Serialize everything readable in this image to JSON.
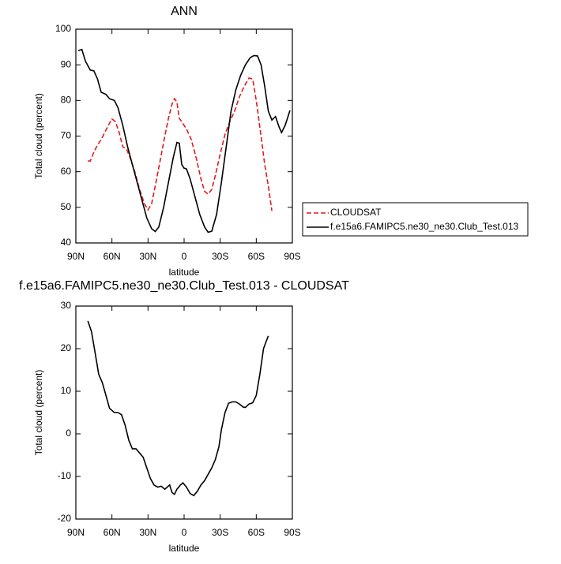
{
  "chart_data": [
    {
      "type": "line",
      "title": "ANN",
      "xlabel": "latitude",
      "ylabel": "Total cloud (percent)",
      "xlim": [
        90,
        -90
      ],
      "ylim": [
        40,
        100
      ],
      "xticks": [
        {
          "value": 90,
          "label": "90N"
        },
        {
          "value": 60,
          "label": "60N"
        },
        {
          "value": 30,
          "label": "30N"
        },
        0,
        {
          "value": -30,
          "label": "30S"
        },
        {
          "value": -60,
          "label": "60S"
        },
        {
          "value": -90,
          "label": "90S"
        }
      ],
      "yticks": [
        40,
        50,
        60,
        70,
        80,
        90,
        100
      ],
      "legend_position": "right",
      "series": [
        {
          "name": "CLOUDSAT",
          "color": "#e41a1c",
          "dash": true,
          "x": [
            80,
            78,
            75,
            72,
            69,
            66,
            63,
            60,
            57,
            54,
            51,
            48,
            45,
            41,
            37,
            33,
            30,
            27,
            24,
            20,
            16,
            13,
            10,
            8,
            6,
            4,
            1,
            -2,
            -6,
            -10,
            -14,
            -17,
            -20,
            -23,
            -26,
            -30,
            -34,
            -38,
            -42,
            -46,
            -50,
            -54,
            -57,
            -60,
            -64,
            -67,
            -70,
            -73
          ],
          "values": [
            63,
            63,
            65.5,
            67.5,
            69,
            71,
            73,
            74.8,
            74,
            71,
            67,
            66.5,
            64,
            60,
            55,
            51,
            49.3,
            51,
            56,
            63,
            70,
            75,
            79,
            80.5,
            79.5,
            75,
            73.5,
            72,
            69,
            64,
            58,
            54.5,
            53.7,
            55,
            59,
            65,
            70.5,
            74,
            77,
            81,
            84,
            86.3,
            86,
            80,
            70,
            62,
            56,
            49
          ]
        },
        {
          "name": "f.e15a6.FAMIPC5.ne30_ne30.Club_Test.013",
          "color": "#000000",
          "dash": false,
          "x": [
            88,
            85,
            82,
            78,
            75,
            72,
            69,
            65,
            62,
            58,
            55,
            51,
            47,
            43,
            39,
            35,
            31,
            27,
            24,
            21,
            17,
            13,
            9,
            6,
            4,
            2,
            0,
            -2,
            -5,
            -9,
            -13,
            -17,
            -20,
            -23,
            -27,
            -31,
            -35,
            -39,
            -43,
            -47,
            -51,
            -55,
            -58,
            -61,
            -64,
            -67,
            -70,
            -73,
            -76,
            -79,
            -81,
            -84,
            -88
          ],
          "values": [
            94,
            94.3,
            91,
            88.5,
            88.3,
            86,
            82.3,
            81.7,
            80.5,
            80,
            78,
            73,
            67,
            62,
            57,
            52,
            47,
            44,
            43.2,
            44.5,
            50,
            57,
            64,
            68.2,
            68,
            62,
            61,
            60.8,
            58,
            53,
            48,
            44.5,
            43,
            43.3,
            48,
            57,
            67,
            77,
            83,
            87,
            90,
            92,
            92.6,
            92.5,
            90,
            84,
            77,
            74.5,
            75.5,
            72.5,
            71,
            73,
            77.2
          ]
        }
      ]
    },
    {
      "type": "line",
      "title": "f.e15a6.FAMIPC5.ne30_ne30.Club_Test.013 - CLOUDSAT",
      "xlabel": "latitude",
      "ylabel": "Total cloud (percent)",
      "xlim": [
        90,
        -90
      ],
      "ylim": [
        -20,
        30
      ],
      "xticks": [
        {
          "value": 90,
          "label": "90N"
        },
        {
          "value": 60,
          "label": "60N"
        },
        {
          "value": 30,
          "label": "30N"
        },
        0,
        {
          "value": -30,
          "label": "30S"
        },
        {
          "value": -60,
          "label": "60S"
        },
        {
          "value": -90,
          "label": "90S"
        }
      ],
      "yticks": [
        -20,
        -10,
        0,
        10,
        20,
        30
      ],
      "series": [
        {
          "color": "#000000",
          "dash": false,
          "x": [
            80,
            77,
            74,
            71,
            68,
            65,
            62,
            58,
            55,
            52,
            49,
            46,
            43,
            40,
            37,
            34,
            31,
            28,
            25,
            22,
            19,
            16,
            14,
            12,
            10,
            8,
            6,
            3,
            1,
            -2,
            -5,
            -8,
            -11,
            -14,
            -17,
            -20,
            -23,
            -26,
            -29,
            -31,
            -34,
            -37,
            -40,
            -43,
            -46,
            -49,
            -51,
            -54,
            -57,
            -60,
            -63,
            -66,
            -68,
            -70
          ],
          "values": [
            26.5,
            24,
            19,
            14,
            12,
            9,
            6,
            5,
            5,
            4.5,
            2,
            -1.5,
            -3.5,
            -3.5,
            -4.5,
            -5.5,
            -8,
            -10.5,
            -12,
            -12.5,
            -12.3,
            -13,
            -12.5,
            -12,
            -13.8,
            -14.2,
            -13,
            -12,
            -11.5,
            -12.5,
            -14,
            -14.5,
            -13.5,
            -12,
            -11,
            -9.5,
            -8,
            -6,
            -3,
            1,
            5,
            7.2,
            7.5,
            7.5,
            7,
            6.3,
            6.2,
            7,
            7.3,
            9,
            14,
            20,
            21.5,
            23
          ]
        }
      ]
    }
  ]
}
